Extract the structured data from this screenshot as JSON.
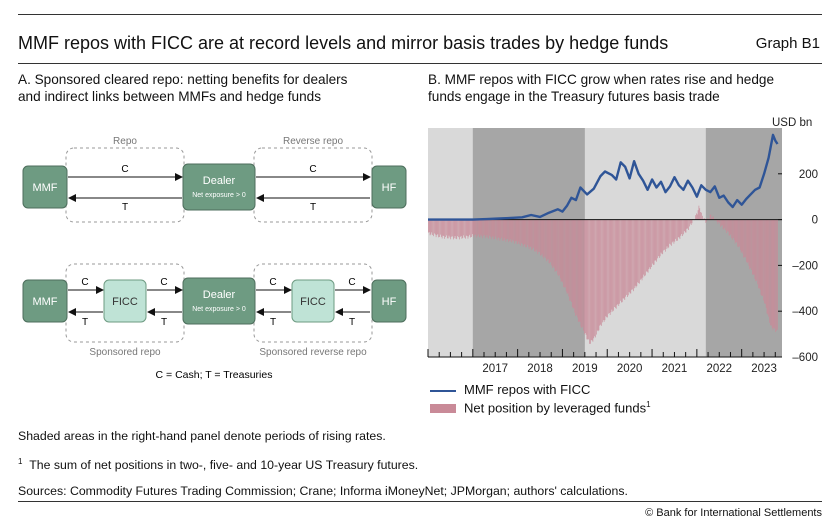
{
  "header": {
    "title": "MMF repos with FICC are at record levels and mirror basis trades by hedge funds",
    "graph_id": "Graph B1"
  },
  "panel_a": {
    "title_line1": "A. Sponsored cleared repo: netting benefits for dealers",
    "title_line2": "and indirect links between MMFs and hedge funds",
    "repo_label": "Repo",
    "reverse_repo_label": "Reverse repo",
    "sponsored_repo_label": "Sponsored repo",
    "sponsored_reverse_repo_label": "Sponsored reverse repo",
    "mmf": "MMF",
    "hf": "HF",
    "fficc": "FICC",
    "dealer": "Dealer",
    "net_exposure": "Net exposure > 0",
    "cash": "C",
    "treasuries": "T",
    "key": "C = Cash; T = Treasuries",
    "colors": {
      "dark_node": "#6e9b82",
      "light_node": "#bfe3d6",
      "node_border": "#4d6e5c"
    }
  },
  "panel_b": {
    "title_line1": "B. MMF repos with FICC grow when rates rise and hedge",
    "title_line2": "funds engage in the Treasury futures basis trade",
    "unit": "USD bn",
    "legend": [
      {
        "label": "MMF repos with FICC",
        "color": "#2f5597"
      },
      {
        "label": "Net position by leveraged funds",
        "sup": "1",
        "color": "#c98a98"
      }
    ]
  },
  "chart_data": {
    "type": "line",
    "x_range": [
      2016.0,
      2023.9
    ],
    "x_ticks": [
      "2017",
      "2018",
      "2019",
      "2020",
      "2021",
      "2022",
      "2023"
    ],
    "y_ticks": [
      200,
      0,
      -200,
      -400,
      -600
    ],
    "ylim": [
      -600,
      400
    ],
    "shaded_periods_rising_rates": [
      [
        2017.0,
        2019.5
      ],
      [
        2022.2,
        2023.9
      ]
    ],
    "series": [
      {
        "name": "MMF repos with FICC",
        "type": "line",
        "color": "#2f5597",
        "points": [
          [
            2016.0,
            0
          ],
          [
            2016.5,
            0
          ],
          [
            2017.0,
            0
          ],
          [
            2017.3,
            2
          ],
          [
            2017.6,
            5
          ],
          [
            2017.9,
            8
          ],
          [
            2018.1,
            10
          ],
          [
            2018.3,
            20
          ],
          [
            2018.5,
            12
          ],
          [
            2018.7,
            30
          ],
          [
            2018.9,
            45
          ],
          [
            2019.0,
            35
          ],
          [
            2019.1,
            60
          ],
          [
            2019.2,
            95
          ],
          [
            2019.3,
            85
          ],
          [
            2019.4,
            140
          ],
          [
            2019.55,
            110
          ],
          [
            2019.7,
            135
          ],
          [
            2019.85,
            190
          ],
          [
            2019.95,
            210
          ],
          [
            2020.1,
            195
          ],
          [
            2020.2,
            175
          ],
          [
            2020.3,
            250
          ],
          [
            2020.4,
            230
          ],
          [
            2020.5,
            180
          ],
          [
            2020.6,
            255
          ],
          [
            2020.7,
            200
          ],
          [
            2020.8,
            170
          ],
          [
            2020.9,
            130
          ],
          [
            2021.0,
            175
          ],
          [
            2021.1,
            140
          ],
          [
            2021.2,
            165
          ],
          [
            2021.3,
            120
          ],
          [
            2021.4,
            145
          ],
          [
            2021.5,
            185
          ],
          [
            2021.6,
            150
          ],
          [
            2021.7,
            130
          ],
          [
            2021.8,
            170
          ],
          [
            2021.9,
            140
          ],
          [
            2022.0,
            100
          ],
          [
            2022.1,
            150
          ],
          [
            2022.2,
            130
          ],
          [
            2022.3,
            120
          ],
          [
            2022.4,
            145
          ],
          [
            2022.5,
            95
          ],
          [
            2022.6,
            105
          ],
          [
            2022.7,
            75
          ],
          [
            2022.8,
            55
          ],
          [
            2022.9,
            85
          ],
          [
            2023.0,
            65
          ],
          [
            2023.1,
            90
          ],
          [
            2023.2,
            110
          ],
          [
            2023.3,
            130
          ],
          [
            2023.4,
            140
          ],
          [
            2023.5,
            200
          ],
          [
            2023.6,
            270
          ],
          [
            2023.7,
            370
          ],
          [
            2023.75,
            345
          ],
          [
            2023.8,
            330
          ]
        ]
      },
      {
        "name": "Net position by leveraged funds",
        "type": "bar",
        "color": "#c98a98",
        "points": [
          [
            2016.0,
            -60
          ],
          [
            2016.3,
            -75
          ],
          [
            2016.6,
            -80
          ],
          [
            2016.9,
            -75
          ],
          [
            2017.0,
            -70
          ],
          [
            2017.3,
            -75
          ],
          [
            2017.6,
            -85
          ],
          [
            2017.9,
            -95
          ],
          [
            2018.1,
            -110
          ],
          [
            2018.3,
            -125
          ],
          [
            2018.5,
            -150
          ],
          [
            2018.7,
            -185
          ],
          [
            2018.9,
            -240
          ],
          [
            2019.1,
            -320
          ],
          [
            2019.3,
            -420
          ],
          [
            2019.5,
            -500
          ],
          [
            2019.6,
            -540
          ],
          [
            2019.7,
            -520
          ],
          [
            2019.85,
            -460
          ],
          [
            2020.0,
            -420
          ],
          [
            2020.2,
            -380
          ],
          [
            2020.4,
            -340
          ],
          [
            2020.6,
            -300
          ],
          [
            2020.8,
            -250
          ],
          [
            2021.0,
            -200
          ],
          [
            2021.2,
            -150
          ],
          [
            2021.4,
            -110
          ],
          [
            2021.6,
            -80
          ],
          [
            2021.8,
            -40
          ],
          [
            2021.95,
            10
          ],
          [
            2022.0,
            30
          ],
          [
            2022.05,
            60
          ],
          [
            2022.1,
            20
          ],
          [
            2022.2,
            -10
          ],
          [
            2022.3,
            20
          ],
          [
            2022.5,
            -20
          ],
          [
            2022.7,
            -60
          ],
          [
            2022.9,
            -110
          ],
          [
            2023.1,
            -180
          ],
          [
            2023.3,
            -260
          ],
          [
            2023.5,
            -360
          ],
          [
            2023.65,
            -470
          ],
          [
            2023.8,
            -490
          ]
        ]
      }
    ]
  },
  "footer": {
    "note": "Shaded areas in the right-hand panel denote periods of rising rates.",
    "footnote_marker": "1",
    "footnote": "The sum of net positions in two-, five- and 10-year US Treasury futures.",
    "sources": "Sources: Commodity Futures Trading Commission; Crane; Informa iMoneyNet; JPMorgan; authors' calculations.",
    "copyright": "© Bank for International Settlements"
  }
}
